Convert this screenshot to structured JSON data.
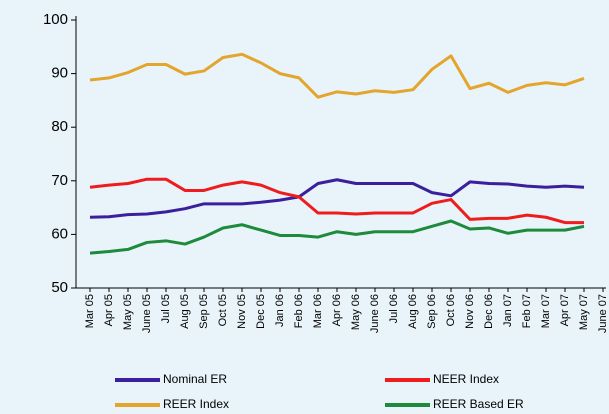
{
  "chart_data": {
    "type": "line",
    "categories": [
      "Mar 05",
      "Apr 05",
      "May 05",
      "June 05",
      "Jul 05",
      "Aug 05",
      "Sep 05",
      "Oct 05",
      "Nov 05",
      "Dec 05",
      "Jan 06",
      "Feb 06",
      "Mar 06",
      "Apr 06",
      "May 06",
      "June 06",
      "Jul 06",
      "Aug 06",
      "Sep 06",
      "Oct 06",
      "Nov 06",
      "Dec 06",
      "Jan 07",
      "Feb 07",
      "Mar 07",
      "Apr 07",
      "May 07",
      "June 07"
    ],
    "series": [
      {
        "name": "Nominal ER",
        "color": "#3b1f9c",
        "values": [
          63.2,
          63.3,
          63.7,
          63.8,
          64.2,
          64.8,
          65.7,
          65.7,
          65.7,
          66.0,
          66.4,
          67.0,
          69.5,
          70.2,
          69.5,
          69.5,
          69.5,
          69.5,
          67.8,
          67.2,
          69.8,
          69.5,
          69.4,
          69.0,
          68.8,
          69.0,
          68.8,
          null
        ]
      },
      {
        "name": "NEER Index",
        "color": "#ee1c1c",
        "values": [
          68.8,
          69.2,
          69.5,
          70.3,
          70.3,
          68.2,
          68.2,
          69.2,
          69.8,
          69.2,
          67.8,
          67.0,
          64.0,
          64.0,
          63.8,
          64.0,
          64.0,
          64.0,
          65.8,
          66.5,
          62.8,
          63.0,
          63.0,
          63.6,
          63.2,
          62.2,
          62.2,
          null
        ]
      },
      {
        "name": "REER Index",
        "color": "#e3a52c",
        "values": [
          88.8,
          89.2,
          90.2,
          91.7,
          91.7,
          89.9,
          90.5,
          93.0,
          93.6,
          92.0,
          90.0,
          89.2,
          85.6,
          86.6,
          86.2,
          86.8,
          86.5,
          87.0,
          90.8,
          93.3,
          87.2,
          88.2,
          86.5,
          87.8,
          88.3,
          87.9,
          89.1,
          null
        ]
      },
      {
        "name": "REER Based ER",
        "color": "#1d8a3c",
        "values": [
          56.5,
          56.8,
          57.2,
          58.5,
          58.8,
          58.2,
          59.5,
          61.2,
          61.8,
          60.8,
          59.8,
          59.8,
          59.5,
          60.5,
          60.0,
          60.5,
          60.5,
          60.5,
          61.5,
          62.5,
          61.0,
          61.2,
          60.2,
          60.8,
          60.8,
          60.8,
          61.5,
          null
        ]
      }
    ],
    "ylim": [
      50,
      100
    ],
    "yticks": [
      50,
      60,
      70,
      80,
      90,
      100
    ],
    "legend": "bottom"
  }
}
